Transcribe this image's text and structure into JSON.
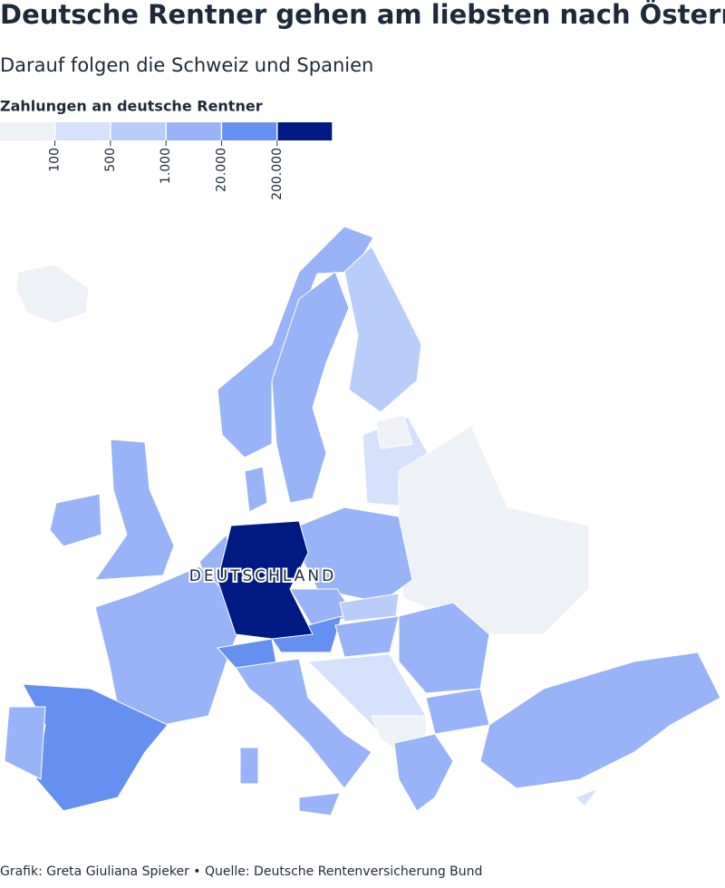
{
  "header": {
    "title": "Deutsche Rentner gehen am liebsten nach Österreich",
    "subtitle": "Darauf folgen die Schweiz und Spanien"
  },
  "legend": {
    "title": "Zahlungen an deutsche Rentner",
    "colors": [
      "#eef1f5",
      "#d6e2fb",
      "#b9cdfa",
      "#98b3f8",
      "#6690ef",
      "#001a83"
    ],
    "ticks": [
      100,
      500,
      {
        "value": 1000,
        "label": "1.000"
      },
      {
        "value": 20000,
        "label": "20.000"
      },
      {
        "value": 200000,
        "label": "200.000"
      }
    ]
  },
  "map": {
    "annotation": "DEUTSCHLAND"
  },
  "footer": "Grafik: Greta Giuliana Spieker • Quelle: Deutsche Rentenversicherung Bund"
}
